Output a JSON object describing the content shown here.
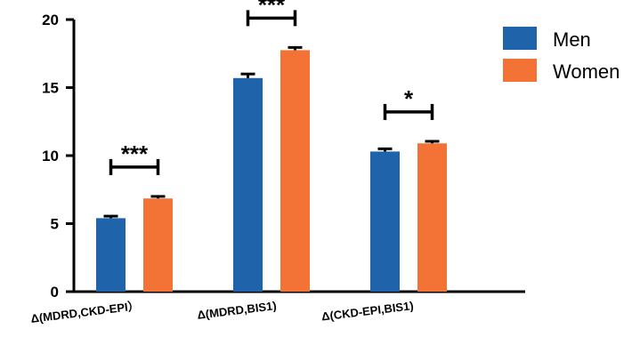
{
  "chart_data": {
    "type": "bar",
    "categories": [
      "Δ(MDRD,CKD-EPI）",
      "Δ(MDRD,BIS1)",
      "Δ(CKD-EPI,BIS1)"
    ],
    "series": [
      {
        "name": "Men",
        "values": [
          5.4,
          15.7,
          10.3
        ],
        "errors": [
          0.15,
          0.3,
          0.2
        ],
        "color": "#1f63aa"
      },
      {
        "name": "Women",
        "values": [
          6.85,
          17.75,
          10.9
        ],
        "errors": [
          0.15,
          0.2,
          0.15
        ],
        "color": "#f37336"
      }
    ],
    "ylim": [
      0,
      20
    ],
    "yticks": [
      0,
      5,
      10,
      15,
      20
    ],
    "significance": [
      "***",
      "***",
      "*"
    ],
    "title": "",
    "xlabel": "",
    "ylabel": "",
    "legend_position": "top-right",
    "grid": false
  }
}
